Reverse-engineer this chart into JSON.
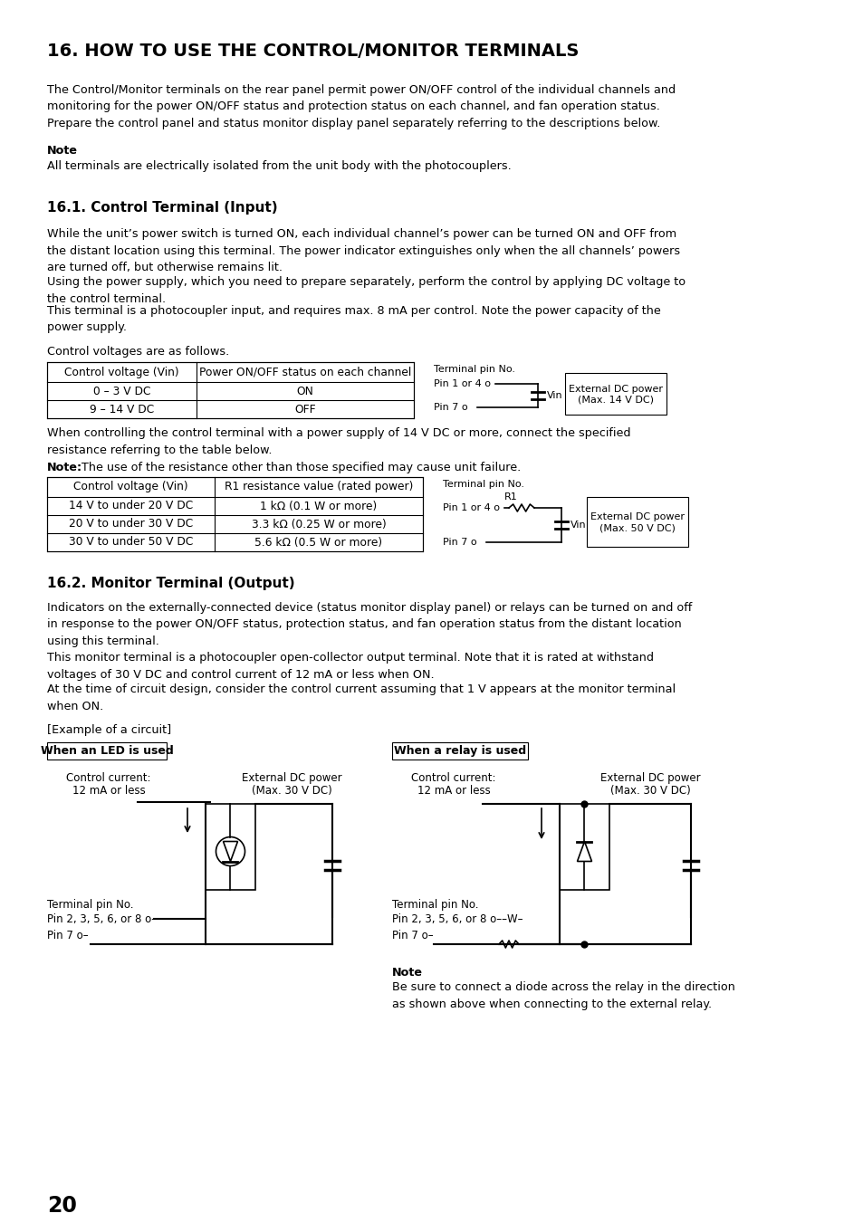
{
  "title": "16. HOW TO USE THE CONTROL/MONITOR TERMINALS",
  "bg_color": "#ffffff",
  "text_color": "#000000",
  "page_number": "20",
  "content": {
    "intro": "The Control/Monitor terminals on the rear panel permit power ON/OFF control of the individual channels and\nmonitoring for the power ON/OFF status and protection status on each channel, and fan operation status.\nPrepare the control panel and status monitor display panel separately referring to the descriptions below.",
    "note_label": "Note",
    "note_text": "All terminals are electrically isolated from the unit body with the photocouplers.",
    "section1_title": "16.1. Control Terminal (Input)",
    "section1_para1": "While the unit’s power switch is turned ON, each individual channel’s power can be turned ON and OFF from\nthe distant location using this terminal. The power indicator extinguishes only when the all channels’ powers\nare turned off, but otherwise remains lit.",
    "section1_para2": "Using the power supply, which you need to prepare separately, perform the control by applying DC voltage to\nthe control terminal.",
    "section1_para3": "This terminal is a photocoupler input, and requires max. 8 mA per control. Note the power capacity of the\npower supply.",
    "control_voltages_label": "Control voltages are as follows.",
    "table1_headers": [
      "Control voltage (Vin)",
      "Power ON/OFF status on each channel"
    ],
    "table1_rows": [
      [
        "0 – 3 V DC",
        "ON"
      ],
      [
        "9 – 14 V DC",
        "OFF"
      ]
    ],
    "between_tables_text": "When controlling the control terminal with a power supply of 14 V DC or more, connect the specified\nresistance referring to the table below.",
    "note2_label": "Note:",
    "note2_text": " The use of the resistance other than those specified may cause unit failure.",
    "table2_headers": [
      "Control voltage (Vin)",
      "R1 resistance value (rated power)"
    ],
    "table2_rows": [
      [
        "14 V to under 20 V DC",
        "1 kΩ (0.1 W or more)"
      ],
      [
        "20 V to under 30 V DC",
        "3.3 kΩ (0.25 W or more)"
      ],
      [
        "30 V to under 50 V DC",
        "5.6 kΩ (0.5 W or more)"
      ]
    ],
    "section2_title": "16.2. Monitor Terminal (Output)",
    "section2_para1": "Indicators on the externally-connected device (status monitor display panel) or relays can be turned on and off\nin response to the power ON/OFF status, protection status, and fan operation status from the distant location\nusing this terminal.",
    "section2_para2": "This monitor terminal is a photocoupler open-collector output terminal. Note that it is rated at withstand\nvoltages of 30 V DC and control current of 12 mA or less when ON.",
    "section2_para3": "At the time of circuit design, consider the control current assuming that 1 V appears at the monitor terminal\nwhen ON.",
    "example_label": "[Example of a circuit]",
    "led_label": "When an LED is used",
    "relay_label": "When a relay is used",
    "final_note_label": "Note",
    "final_note_text": "Be sure to connect a diode across the relay in the direction\nas shown above when connecting to the external relay."
  }
}
